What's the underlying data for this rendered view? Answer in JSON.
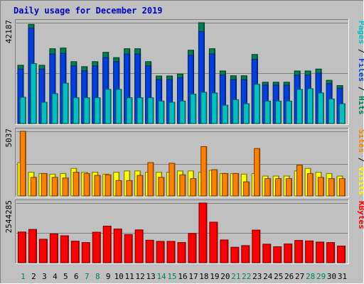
{
  "chart_data": {
    "type": "bar",
    "title": "Daily usage for December 2019",
    "categories": [
      "1",
      "2",
      "3",
      "4",
      "5",
      "6",
      "7",
      "8",
      "9",
      "10",
      "11",
      "12",
      "13",
      "14",
      "15",
      "16",
      "17",
      "18",
      "19",
      "20",
      "21",
      "22",
      "23",
      "24",
      "25",
      "26",
      "27",
      "28",
      "29",
      "30",
      "31"
    ],
    "weekend_days": [
      "1",
      "7",
      "8",
      "14",
      "15",
      "21",
      "22",
      "28",
      "29"
    ],
    "colors": {
      "pages": "#00c0c0",
      "files": "#0040e0",
      "hits": "#008050",
      "sites": "#ff8000",
      "visits": "#ffff00",
      "kbytes": "#ff0000",
      "weekday_label": "#000000",
      "weekend_label": "#00805c",
      "frame_bg": "#c0c0c0",
      "title": "#0000c0",
      "separator": "#000000"
    },
    "panels": [
      {
        "id": "hits_panel",
        "max_label": "42187",
        "ymax": 42187,
        "series": [
          {
            "name": "Hits",
            "values": [
              24400,
              41500,
              24400,
              31300,
              31600,
              25900,
              23800,
              25900,
              29800,
              27600,
              31300,
              31300,
              25900,
              19900,
              19900,
              20700,
              30700,
              42187,
              31300,
              22000,
              20000,
              20000,
              28900,
              17300,
              17300,
              17300,
              22000,
              22000,
              22800,
              18100,
              15900
            ]
          },
          {
            "name": "Files",
            "values": [
              22800,
              40000,
              22800,
              29100,
              29400,
              24100,
              22100,
              24100,
              27600,
              25900,
              29100,
              29100,
              24100,
              18400,
              18400,
              19200,
              28700,
              38500,
              29100,
              20300,
              18400,
              18400,
              26900,
              16100,
              16100,
              16100,
              20300,
              20300,
              21100,
              16700,
              14800
            ]
          },
          {
            "name": "Pages",
            "values": [
              11000,
              25100,
              8900,
              12500,
              16900,
              10800,
              10800,
              10800,
              14300,
              14300,
              10800,
              10800,
              10800,
              9400,
              8900,
              9400,
              12300,
              13100,
              12800,
              7700,
              10000,
              8300,
              16400,
              9400,
              9400,
              9400,
              14300,
              14600,
              12800,
              10300,
              8300
            ]
          }
        ],
        "side_labels": [
          {
            "text": "Pages",
            "color_key": "pages"
          },
          {
            "text": " / ",
            "color_key": "separator"
          },
          {
            "text": "Files",
            "color_key": "files"
          },
          {
            "text": " / ",
            "color_key": "separator"
          },
          {
            "text": "Hits",
            "color_key": "hits"
          }
        ]
      },
      {
        "id": "visits_panel",
        "max_label": "5037",
        "ymax": 5037,
        "series": [
          {
            "name": "Visits",
            "values": [
              2600,
              1850,
              1750,
              1700,
              1750,
              2150,
              1850,
              1850,
              1700,
              1850,
              1950,
              1950,
              1850,
              1850,
              1850,
              1950,
              1950,
              1850,
              2000,
              1750,
              1750,
              1700,
              1750,
              1550,
              1550,
              1550,
              1950,
              2150,
              1850,
              1750,
              1550
            ]
          },
          {
            "name": "Sites",
            "values": [
              5037,
              1450,
              1750,
              1450,
              1400,
              1850,
              1750,
              1600,
              1650,
              1200,
              1200,
              1600,
              2600,
              1450,
              2550,
              1650,
              1350,
              3850,
              2050,
              1750,
              1750,
              1100,
              3700,
              1350,
              1350,
              1350,
              2400,
              1750,
              1450,
              1350,
              1350
            ]
          }
        ],
        "side_labels": [
          {
            "text": "Sites",
            "color_key": "sites"
          },
          {
            "text": " / ",
            "color_key": "separator"
          },
          {
            "text": "Visits",
            "color_key": "visits"
          }
        ]
      },
      {
        "id": "kbytes_panel",
        "max_label": "2544285",
        "ymax": 2544285,
        "series": [
          {
            "name": "KBytes",
            "values": [
              1310000,
              1420000,
              1000000,
              1230000,
              1150000,
              920000,
              860000,
              1300000,
              1560000,
              1440000,
              1200000,
              1400000,
              960000,
              910000,
              910000,
              860000,
              1250000,
              2544285,
              1730000,
              970000,
              660000,
              730000,
              1390000,
              790000,
              680000,
              800000,
              950000,
              930000,
              880000,
              860000,
              710000
            ]
          }
        ],
        "side_labels": [
          {
            "text": "KBytes",
            "color_key": "kbytes"
          }
        ]
      }
    ]
  }
}
